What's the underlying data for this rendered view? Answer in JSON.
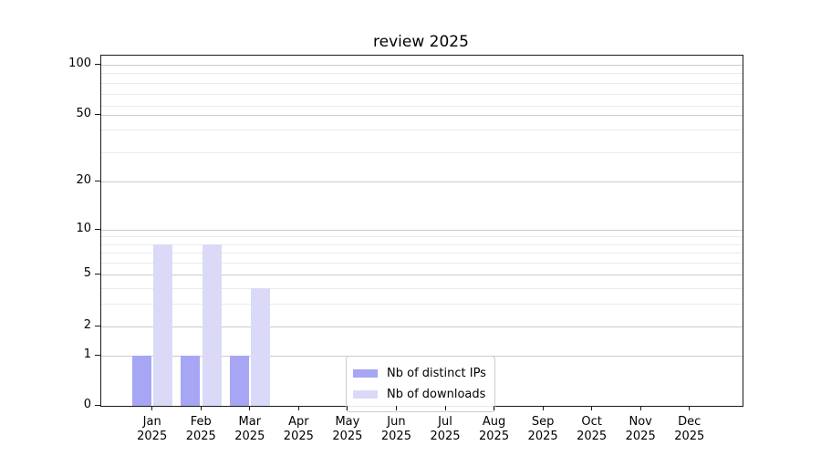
{
  "chart_data": {
    "type": "bar",
    "title": "review 2025",
    "categories": [
      "Jan",
      "Feb",
      "Mar",
      "Apr",
      "May",
      "Jun",
      "Jul",
      "Aug",
      "Sep",
      "Oct",
      "Nov",
      "Dec"
    ],
    "x_tick_year": "2025",
    "series": [
      {
        "name": "Nb of distinct IPs",
        "color": "#a6a6f5",
        "values": [
          1,
          1,
          1,
          0,
          0,
          0,
          0,
          0,
          0,
          0,
          0,
          0
        ]
      },
      {
        "name": "Nb of downloads",
        "color": "#dadaf8",
        "values": [
          8,
          8,
          4,
          0,
          0,
          0,
          0,
          0,
          0,
          0,
          0,
          0
        ]
      }
    ],
    "yscale": "symlog",
    "ylim": [
      0,
      113
    ],
    "y_major_ticks": [
      0,
      1,
      2,
      5,
      10,
      20,
      50,
      100
    ],
    "y_minor_ticks": [
      3,
      4,
      6,
      7,
      8,
      9,
      30,
      40,
      60,
      70,
      80,
      90
    ],
    "grid": true,
    "legend": {
      "position": "lower center",
      "items": [
        "Nb of distinct IPs",
        "Nb of downloads"
      ]
    }
  },
  "colors": {
    "background": "#ffffff",
    "axis": "#1a1a1a",
    "grid_major": "#cbcbcb",
    "grid_minor": "#eaeaea",
    "legend_border": "#cccccc",
    "series1": "#a6a6f5",
    "series2": "#dadaf8"
  }
}
